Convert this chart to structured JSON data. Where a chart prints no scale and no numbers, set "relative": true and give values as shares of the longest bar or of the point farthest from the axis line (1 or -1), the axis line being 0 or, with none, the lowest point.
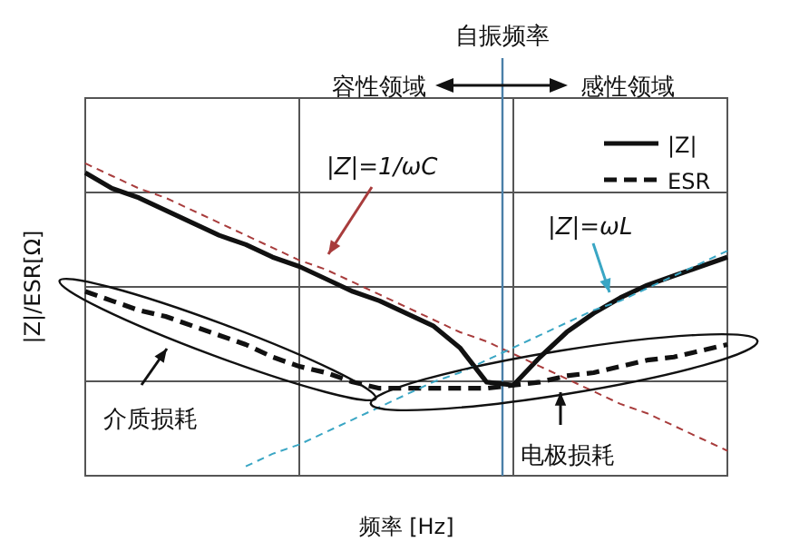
{
  "chart_data": {
    "type": "line",
    "relative": true,
    "xlabel": "频率 [Hz]",
    "ylabel": "|Z|/ESR[Ω]",
    "categories": [
      null,
      null,
      null,
      null,
      null,
      null,
      null,
      null,
      null,
      null,
      null,
      null,
      null,
      null,
      null,
      null,
      null,
      null,
      null,
      null,
      null,
      null,
      null,
      null,
      null
    ],
    "series": [
      {
        "name": "|Z|",
        "color": "#111111",
        "line_style": "solid",
        "values": [
          0.97,
          0.92,
          0.89,
          0.85,
          0.81,
          0.77,
          0.74,
          0.7,
          0.67,
          0.63,
          0.59,
          0.56,
          0.52,
          0.48,
          0.41,
          0.3,
          0.29,
          0.38,
          0.46,
          0.52,
          0.57,
          0.61,
          0.64,
          0.67,
          0.7
        ]
      },
      {
        "name": "ESR",
        "color": "#111111",
        "line_style": "dashed",
        "values": [
          0.59,
          0.56,
          0.53,
          0.51,
          0.48,
          0.45,
          0.42,
          0.38,
          0.35,
          0.33,
          0.3,
          0.28,
          0.28,
          0.28,
          0.28,
          0.28,
          0.29,
          0.3,
          0.32,
          0.33,
          0.35,
          0.37,
          0.38,
          0.4,
          0.42
        ]
      },
      {
        "color": "#a83c3c",
        "line_style": "dashed",
        "values": [
          1,
          0.96,
          0.92,
          0.89,
          0.85,
          0.81,
          0.77,
          0.73,
          0.69,
          0.66,
          0.62,
          0.58,
          0.54,
          0.5,
          0.46,
          0.43,
          0.39,
          0.35,
          0.31,
          0.27,
          0.23,
          0.2,
          0.16,
          0.12,
          0.08
        ]
      },
      {
        "color": "#3aa6c4",
        "line_style": "dashed",
        "values": [
          null,
          null,
          null,
          null,
          null,
          null,
          0.03,
          0.07,
          0.1,
          0.14,
          0.18,
          0.22,
          0.26,
          0.3,
          0.33,
          0.37,
          0.41,
          0.45,
          0.49,
          0.53,
          0.56,
          0.6,
          0.64,
          0.68,
          0.72
        ]
      }
    ],
    "annotations": [
      "容性领域",
      "感性领域",
      "|Z|=1/ωC",
      "|Z|=ωL",
      "介质损耗",
      "电极损耗",
      "自振频率"
    ],
    "grid": true,
    "legend": "top right"
  }
}
